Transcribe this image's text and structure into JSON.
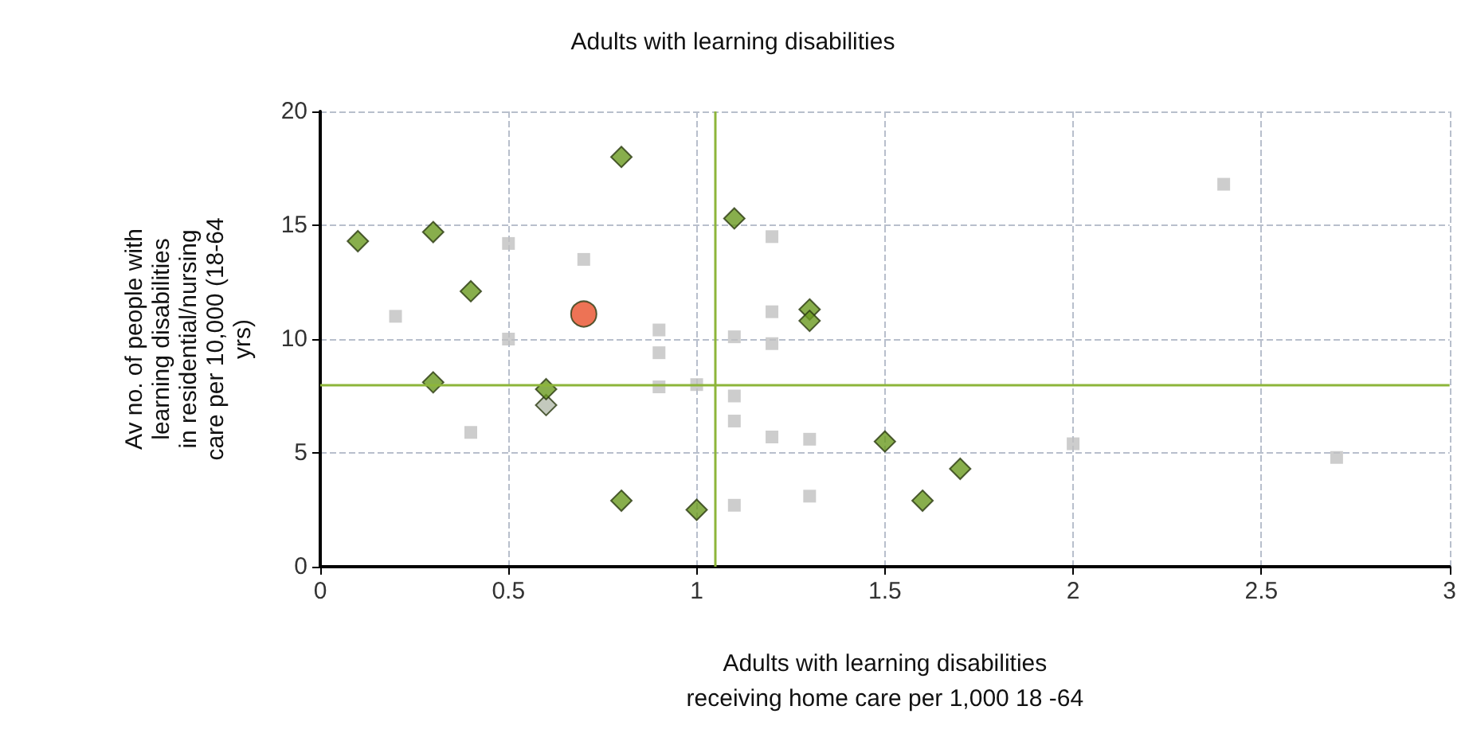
{
  "chart_data": {
    "type": "scatter",
    "title": "Adults with learning disabilities",
    "xlabel": "Adults with learning disabilities\nreceiving home care per 1,000 18 -64",
    "ylabel": "Av no. of people with\nlearning disabilities\nin residential/nursing\ncare per 10,000 (18-64\nyrs)",
    "xlim": [
      0,
      3
    ],
    "xticks": [
      0,
      0.5,
      1,
      1.5,
      2,
      2.5,
      3
    ],
    "ylim": [
      0,
      20
    ],
    "yticks": [
      0,
      5,
      10,
      15,
      20
    ],
    "grid": true,
    "series": [
      {
        "color": "#c0c0c0",
        "marker": "square",
        "x": [
          0.2,
          0.4,
          0.5,
          0.5,
          0.7,
          0.9,
          0.9,
          0.9,
          1.0,
          1.1,
          1.1,
          1.1,
          1.1,
          1.2,
          1.2,
          1.2,
          1.2,
          1.3,
          1.3,
          2.0,
          2.4,
          2.7
        ],
        "values": [
          11,
          5.9,
          14.2,
          10,
          13.5,
          10.4,
          9.4,
          7.9,
          8.0,
          10.1,
          7.5,
          6.4,
          2.7,
          14.5,
          11.2,
          9.8,
          5.7,
          5.6,
          3.1,
          5.4,
          16.8,
          4.8
        ]
      },
      {
        "color": "#b4bcac",
        "marker": "diamond",
        "x": [
          0.6
        ],
        "values": [
          7.1
        ]
      },
      {
        "color": "#6a9a1f",
        "marker": "diamond",
        "x": [
          0.1,
          0.3,
          0.4,
          0.3,
          0.6,
          0.8,
          0.8,
          1.0,
          1.1,
          1.3,
          1.3,
          1.5,
          1.6,
          1.7
        ],
        "values": [
          14.3,
          14.7,
          12.1,
          8.1,
          7.8,
          18,
          2.9,
          2.5,
          15.3,
          11.3,
          10.8,
          5.5,
          2.9,
          4.3
        ]
      },
      {
        "color": "#e8502a",
        "marker": "circle",
        "x": [
          0.7
        ],
        "values": [
          11.1
        ]
      }
    ],
    "ref_lines": [
      {
        "axis": "x",
        "value": 1.05,
        "color": "#8db53a"
      },
      {
        "axis": "y",
        "value": 8,
        "color": "#8db53a"
      }
    ]
  }
}
